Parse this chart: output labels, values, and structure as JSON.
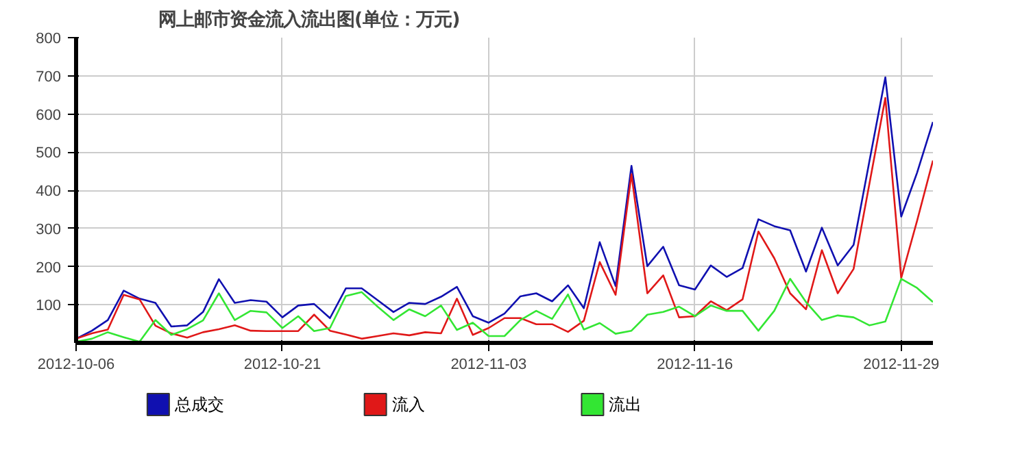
{
  "chart_data": {
    "type": "line",
    "title": "网上邮市资金流入流出图(单位：万元)",
    "categories": [
      "2012-10-06",
      null,
      null,
      null,
      null,
      null,
      null,
      null,
      null,
      null,
      null,
      null,
      null,
      "2012-10-21",
      null,
      null,
      null,
      null,
      null,
      null,
      null,
      null,
      null,
      null,
      null,
      null,
      "2012-11-03",
      null,
      null,
      null,
      null,
      null,
      null,
      null,
      null,
      null,
      null,
      null,
      null,
      "2012-11-16",
      null,
      null,
      null,
      null,
      null,
      null,
      null,
      null,
      null,
      null,
      null,
      null,
      "2012-11-29",
      null,
      null
    ],
    "series": [
      {
        "name": "总成交",
        "color": "#1010b0",
        "values": [
          11,
          32,
          60,
          137,
          116,
          105,
          43,
          46,
          81,
          167,
          105,
          112,
          108,
          67,
          98,
          102,
          65,
          143,
          143,
          112,
          81,
          105,
          102,
          121,
          147,
          70,
          53,
          77,
          122,
          130,
          109,
          151,
          91,
          264,
          149,
          464,
          201,
          252,
          151,
          140,
          203,
          173,
          196,
          324,
          306,
          295,
          187,
          302,
          203,
          257,
          477,
          696,
          331,
          446,
          579
        ]
      },
      {
        "name": "流入",
        "color": "#e01818",
        "values": [
          11,
          25,
          35,
          126,
          114,
          45,
          25,
          14,
          28,
          36,
          46,
          32,
          31,
          31,
          31,
          74,
          32,
          22,
          11,
          18,
          25,
          20,
          28,
          25,
          116,
          21,
          39,
          65,
          65,
          49,
          49,
          29,
          58,
          212,
          126,
          442,
          130,
          177,
          67,
          70,
          109,
          86,
          114,
          292,
          222,
          130,
          88,
          243,
          130,
          194,
          418,
          642,
          170,
          320,
          478
        ]
      },
      {
        "name": "流出",
        "color": "#33e633",
        "values": [
          3,
          11,
          28,
          15,
          3,
          60,
          21,
          36,
          59,
          130,
          60,
          84,
          80,
          39,
          70,
          31,
          39,
          123,
          133,
          95,
          60,
          88,
          70,
          98,
          34,
          53,
          18,
          18,
          60,
          84,
          63,
          127,
          35,
          52,
          24,
          32,
          74,
          81,
          95,
          70,
          98,
          84,
          84,
          32,
          84,
          168,
          107,
          60,
          72,
          67,
          46,
          56,
          168,
          144,
          107
        ]
      }
    ],
    "ylim": [
      0,
      800
    ],
    "yticks": [
      100,
      200,
      300,
      400,
      500,
      600,
      700,
      800
    ],
    "grid": true,
    "legend": "bottom",
    "line_style": "solid"
  }
}
